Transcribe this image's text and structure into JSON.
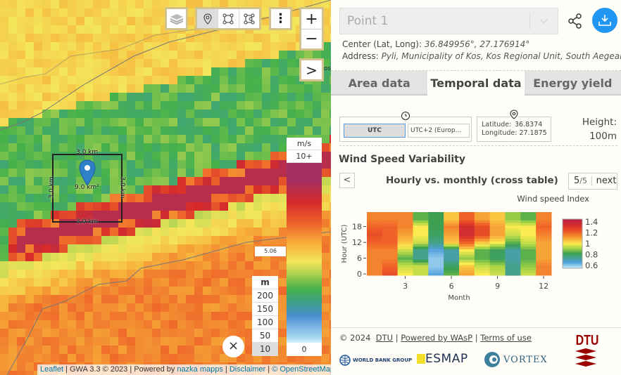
{
  "map": {
    "measure": {
      "top": "3.0 km",
      "bottom": "3.0 km",
      "left": "3.0 km",
      "right": "3.0 km",
      "area": "9.0 km²"
    },
    "wind_legend": {
      "unit": "m/s",
      "max": "10+",
      "min": "0",
      "marker": "5.06"
    },
    "height_legend": {
      "unit": "m",
      "options": [
        "200",
        "150",
        "100",
        "50",
        "10"
      ],
      "selected": "10"
    },
    "attribution": {
      "leaflet": "Leaflet",
      "gwa": " | GWA 3.3 © 2023 | Powered by ",
      "nazka": "nazka mapps",
      "sep": " | ",
      "disclaimer": "Disclaimer",
      "osm": "© OpenStreetMap"
    },
    "controls": {
      "zoom_in": "+",
      "zoom_out": "−",
      "expand": ">",
      "close": "×",
      "menu": "⋮"
    },
    "edge_text": "os"
  },
  "panel": {
    "point_select": "Point 1",
    "center_label": "Center (Lat, Long):",
    "center_value": "36.849956°, 27.176914°",
    "address_label": "Address:",
    "address_value": "Pyli, Municipality of Kos, Kos Regional Unit, South Aegean, A...",
    "tabs": [
      "Area data",
      "Temporal data",
      "Energy yield"
    ],
    "active_tab": "Temporal data",
    "timezone": {
      "utc": "UTC",
      "local": "UTC+2 (Europ..."
    },
    "latlon": {
      "lat_label": "Latitude:",
      "lat": "36.8374",
      "lon_label": "Longitude:",
      "lon": "27.1875"
    },
    "height": {
      "label": "Height:",
      "value": "100m"
    },
    "section_title": "Wind Speed Variability",
    "chart_title": "Hourly vs. monthly (cross table)",
    "pager": {
      "page": "5",
      "total": "/5",
      "next": "next"
    },
    "footer": {
      "copyright": "© 2024",
      "dtu": "DTU",
      "wasp": "Powered by WAsP",
      "terms": "Terms of use",
      "logos": [
        "WORLD BANK GROUP",
        "ESMAP",
        "VORTEX",
        "DTU"
      ]
    }
  },
  "chart_data": {
    "type": "heatmap",
    "title": "Wind speed Index",
    "xlabel": "Month",
    "ylabel": "Hour (UTC)",
    "x": [
      1,
      2,
      3,
      4,
      5,
      6,
      7,
      8,
      9,
      10,
      11,
      12
    ],
    "y_hour_bands": [
      0,
      3,
      6,
      9,
      12,
      15,
      18,
      21
    ],
    "xticks": [
      "3",
      "6",
      "9",
      "12"
    ],
    "yticks": [
      "0",
      "6",
      "12",
      "18"
    ],
    "colorbar_ticks": [
      "1.4",
      "1.2",
      "1",
      "0.8",
      "0.6"
    ],
    "zlim": [
      0.55,
      1.45
    ],
    "values_by_month": [
      [
        1.15,
        1.15,
        1.15,
        1.15,
        1.2,
        1.25,
        1.2,
        1.15
      ],
      [
        1.25,
        1.2,
        1.15,
        1.15,
        1.2,
        1.2,
        1.2,
        1.15
      ],
      [
        1.0,
        0.95,
        0.85,
        0.95,
        1.05,
        1.1,
        1.15,
        1.15
      ],
      [
        0.95,
        0.95,
        0.75,
        0.75,
        0.95,
        1.0,
        1.0,
        0.85
      ],
      [
        0.65,
        0.6,
        0.6,
        0.65,
        0.75,
        0.8,
        0.82,
        0.82
      ],
      [
        0.85,
        0.8,
        0.72,
        0.72,
        1.05,
        1.1,
        1.15,
        1.05
      ],
      [
        1.1,
        1.05,
        0.9,
        1.0,
        1.2,
        1.35,
        1.35,
        1.2
      ],
      [
        1.0,
        0.95,
        0.85,
        0.85,
        1.05,
        1.25,
        1.25,
        1.1
      ],
      [
        0.95,
        0.92,
        0.8,
        0.8,
        1.0,
        1.1,
        1.1,
        1.05
      ],
      [
        0.75,
        0.75,
        0.72,
        0.72,
        0.85,
        0.95,
        1.0,
        0.9
      ],
      [
        0.95,
        0.9,
        0.85,
        0.85,
        0.95,
        1.0,
        1.0,
        0.85
      ],
      [
        1.15,
        1.15,
        1.1,
        1.1,
        1.1,
        1.15,
        1.2,
        1.15
      ]
    ]
  }
}
